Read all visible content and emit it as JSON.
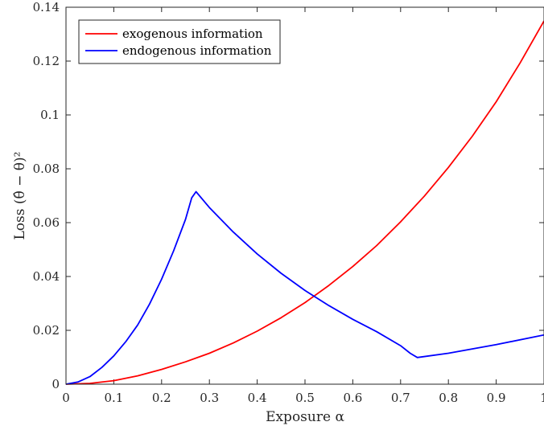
{
  "chart_data": {
    "type": "line",
    "xlabel": "Exposure α",
    "ylabel": "Loss   (θ̂ − θ)²",
    "xlim": [
      0,
      1
    ],
    "ylim": [
      0,
      0.14
    ],
    "x_ticks": [
      "0",
      "0.1",
      "0.2",
      "0.3",
      "0.4",
      "0.5",
      "0.6",
      "0.7",
      "0.8",
      "0.9",
      "1"
    ],
    "y_ticks": [
      "0",
      "0.02",
      "0.04",
      "0.06",
      "0.08",
      "0.1",
      "0.12",
      "0.14"
    ],
    "grid": false,
    "legend_position": "top-left",
    "series": [
      {
        "name": "exogenous information",
        "color": "#ff0000",
        "x": [
          0,
          0.05,
          0.1,
          0.15,
          0.2,
          0.25,
          0.3,
          0.35,
          0.4,
          0.45,
          0.5,
          0.55,
          0.6,
          0.65,
          0.7,
          0.75,
          0.8,
          0.85,
          0.9,
          0.95,
          1.0
        ],
        "y": [
          0,
          0.0003,
          0.0013,
          0.0031,
          0.0055,
          0.0083,
          0.0115,
          0.0153,
          0.0197,
          0.0247,
          0.0303,
          0.0367,
          0.0437,
          0.0515,
          0.0603,
          0.0699,
          0.0805,
          0.0921,
          0.1049,
          0.1193,
          0.1349
        ]
      },
      {
        "name": "endogenous information",
        "color": "#0000ff",
        "x": [
          0,
          0.025,
          0.05,
          0.075,
          0.1,
          0.125,
          0.15,
          0.175,
          0.2,
          0.225,
          0.25,
          0.263,
          0.272,
          0.3,
          0.35,
          0.4,
          0.45,
          0.5,
          0.55,
          0.6,
          0.65,
          0.7,
          0.72,
          0.735,
          0.8,
          0.9,
          1.0
        ],
        "y": [
          0,
          0.0008,
          0.0028,
          0.0062,
          0.0105,
          0.0158,
          0.022,
          0.0298,
          0.039,
          0.0495,
          0.0612,
          0.0692,
          0.0715,
          0.0656,
          0.0565,
          0.0484,
          0.0412,
          0.0348,
          0.0292,
          0.0241,
          0.0195,
          0.0143,
          0.0115,
          0.0099,
          0.0115,
          0.0147,
          0.0183
        ]
      }
    ]
  }
}
